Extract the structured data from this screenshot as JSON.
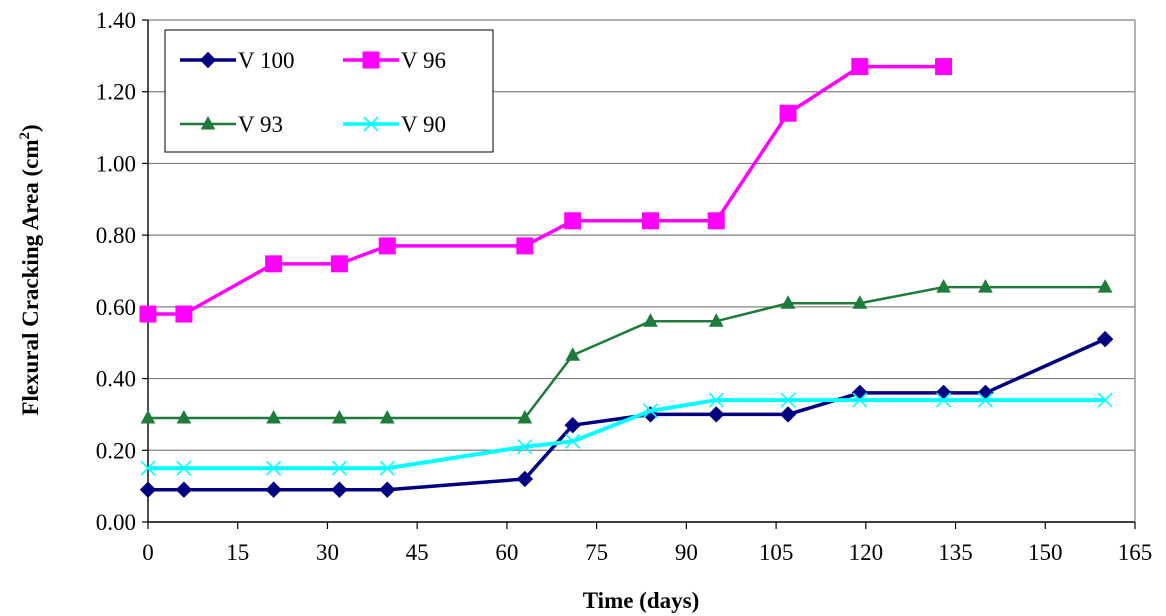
{
  "chart_data": {
    "type": "line",
    "xlabel": "Time (days)",
    "ylabel": "Flexural Cracking Area (cm",
    "ylabel_sup": "2",
    "ylabel_close": ")",
    "xlim": [
      0,
      165
    ],
    "ylim": [
      0,
      1.4
    ],
    "xticks": [
      0,
      15,
      30,
      45,
      60,
      75,
      90,
      105,
      120,
      135,
      150,
      165
    ],
    "yticks": [
      0.0,
      0.2,
      0.4,
      0.6,
      0.8,
      1.0,
      1.2,
      1.4
    ],
    "ytick_labels": [
      "0.00",
      "0.20",
      "0.40",
      "0.60",
      "0.80",
      "1.00",
      "1.20",
      "1.40"
    ],
    "grid": "horizontal",
    "legend_position": "top-left",
    "series": [
      {
        "name": "V 100",
        "color": "#000080",
        "marker": "diamond",
        "x": [
          0,
          6,
          21,
          32,
          40,
          63,
          71,
          84,
          95,
          107,
          119,
          133,
          140,
          160
        ],
        "y": [
          0.09,
          0.09,
          0.09,
          0.09,
          0.09,
          0.12,
          0.27,
          0.3,
          0.3,
          0.3,
          0.36,
          0.36,
          0.36,
          0.51
        ]
      },
      {
        "name": "V 96",
        "color": "#ff00ff",
        "marker": "square",
        "x": [
          0,
          6,
          21,
          32,
          40,
          63,
          71,
          84,
          95,
          107,
          119,
          133
        ],
        "y": [
          0.58,
          0.58,
          0.72,
          0.72,
          0.77,
          0.77,
          0.84,
          0.84,
          0.84,
          1.14,
          1.27,
          1.27
        ]
      },
      {
        "name": "V 93",
        "color": "#1e7b3a",
        "marker": "triangle",
        "x": [
          0,
          6,
          21,
          32,
          40,
          63,
          71,
          84,
          95,
          107,
          119,
          133,
          140,
          160
        ],
        "y": [
          0.29,
          0.29,
          0.29,
          0.29,
          0.29,
          0.29,
          0.465,
          0.56,
          0.56,
          0.61,
          0.61,
          0.655,
          0.655,
          0.655
        ]
      },
      {
        "name": "V 90",
        "color": "#00ffff",
        "marker": "x",
        "x": [
          0,
          6,
          21,
          32,
          40,
          63,
          71,
          84,
          95,
          107,
          119,
          133,
          140,
          160
        ],
        "y": [
          0.15,
          0.15,
          0.15,
          0.15,
          0.15,
          0.21,
          0.225,
          0.31,
          0.34,
          0.34,
          0.34,
          0.34,
          0.34,
          0.34
        ]
      }
    ]
  }
}
